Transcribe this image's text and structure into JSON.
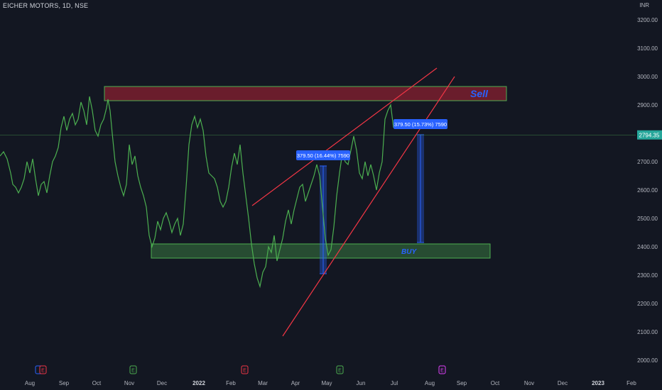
{
  "header": {
    "symbol": "EICHER MOTORS, 1D, NSE",
    "currency": "INR"
  },
  "colors": {
    "background": "#131722",
    "price_line": "#4caf50",
    "trendline": "#f23645",
    "sell_zone": "#7a1c2b",
    "buy_zone": "#2e7d32",
    "measure": "#2962ff",
    "last_price_tag": "#26a69a"
  },
  "chart_data": {
    "type": "line",
    "title": "EICHER MOTORS, 1D, NSE",
    "ylabel": "INR",
    "ylim": [
      1970,
      3250
    ],
    "y_ticks": [
      "3200.00",
      "3100.00",
      "3000.00",
      "2900.00",
      "2800.00",
      "2700.00",
      "2600.00",
      "2500.00",
      "2400.00",
      "2300.00",
      "2200.00",
      "2100.00",
      "2000.00"
    ],
    "x_ticks": [
      "Aug",
      "Sep",
      "Oct",
      "Nov",
      "Dec",
      "2022",
      "Feb",
      "Mar",
      "Apr",
      "May",
      "Jun",
      "Jul",
      "Aug",
      "Sep",
      "Oct",
      "Nov",
      "Dec",
      "2023",
      "Feb"
    ],
    "last_price": "2794.35",
    "series": [
      {
        "x": [
          0,
          5,
          10,
          15,
          18,
          22,
          26,
          30,
          34,
          38,
          42,
          46,
          50,
          54,
          58,
          62,
          66,
          70,
          74,
          78,
          82,
          86,
          90,
          94,
          98,
          102,
          106,
          110,
          114,
          118,
          122,
          126,
          130,
          134,
          138,
          142,
          146,
          150,
          152,
          155,
          158,
          162,
          166,
          170,
          174,
          178,
          182,
          186,
          190,
          194,
          198,
          202,
          206,
          210,
          214,
          218,
          222,
          226,
          230,
          234,
          238,
          242,
          246,
          250,
          254,
          258,
          262,
          266,
          270,
          274,
          278,
          282,
          286,
          290,
          294,
          298,
          302,
          306,
          310,
          314,
          318,
          322,
          326,
          330,
          334,
          338,
          342,
          346,
          350,
          354,
          358,
          362,
          366,
          370,
          374,
          378,
          382,
          386,
          390,
          394,
          398,
          402,
          406,
          410,
          414,
          418,
          422,
          426,
          430,
          434,
          438,
          442,
          446,
          450,
          454,
          458,
          462,
          466,
          470,
          474,
          478,
          482,
          486,
          490,
          494,
          498,
          502,
          506,
          510,
          514,
          518,
          522,
          526,
          530,
          534,
          538,
          542,
          546,
          550,
          554
        ],
        "y": [
          2720,
          2735,
          2710,
          2660,
          2620,
          2610,
          2590,
          2610,
          2640,
          2700,
          2660,
          2710,
          2640,
          2580,
          2620,
          2630,
          2590,
          2650,
          2700,
          2720,
          2750,
          2820,
          2860,
          2810,
          2850,
          2870,
          2830,
          2850,
          2910,
          2880,
          2830,
          2930,
          2880,
          2810,
          2790,
          2830,
          2850,
          2890,
          2920,
          2880,
          2800,
          2700,
          2650,
          2610,
          2580,
          2620,
          2760,
          2690,
          2720,
          2650,
          2610,
          2580,
          2540,
          2440,
          2400,
          2430,
          2490,
          2460,
          2500,
          2520,
          2490,
          2450,
          2480,
          2500,
          2440,
          2480,
          2610,
          2760,
          2830,
          2860,
          2820,
          2850,
          2810,
          2720,
          2660,
          2650,
          2640,
          2610,
          2560,
          2540,
          2560,
          2610,
          2680,
          2730,
          2690,
          2760,
          2660,
          2580,
          2500,
          2410,
          2340,
          2290,
          2260,
          2310,
          2330,
          2400,
          2380,
          2440,
          2350,
          2390,
          2430,
          2490,
          2530,
          2480,
          2530,
          2570,
          2610,
          2620,
          2560,
          2590,
          2620,
          2650,
          2690,
          2650,
          2540,
          2430,
          2370,
          2390,
          2470,
          2580,
          2660,
          2730,
          2700,
          2690,
          2740,
          2790,
          2740,
          2660,
          2640,
          2700,
          2650,
          2690,
          2650,
          2600,
          2660,
          2700,
          2850,
          2880,
          2900,
          2820
        ]
      }
    ],
    "annotations": {
      "sell_zone": {
        "label": "Sell",
        "y_range": [
          2915,
          2965
        ],
        "x_range": [
          147,
          713
        ]
      },
      "buy_zone": {
        "label": "BUY",
        "y_range": [
          2360,
          2410
        ],
        "x_range": [
          213,
          690
        ]
      },
      "trendlines": [
        {
          "from": [
            355,
            2545
          ],
          "to": [
            615,
            3030
          ]
        },
        {
          "from": [
            398,
            2085
          ],
          "to": [
            640,
            3000
          ]
        }
      ],
      "measure_1": {
        "label": "379.50 (16.44%) 7590",
        "x": 455,
        "y_range": [
          2305,
          2685
        ]
      },
      "measure_2": {
        "label": "379.50 (15.73%) 7590",
        "x": 592,
        "y_range": [
          2415,
          2795
        ]
      }
    }
  }
}
